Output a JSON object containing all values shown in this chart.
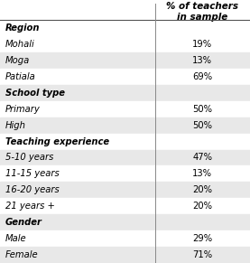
{
  "header": "% of teachers\nin sample",
  "rows": [
    {
      "label": "Region",
      "value": "",
      "is_header": true,
      "bg": "#ffffff"
    },
    {
      "label": "Mohali",
      "value": "19%",
      "is_header": false,
      "bg": "#ffffff"
    },
    {
      "label": "Moga",
      "value": "13%",
      "is_header": false,
      "bg": "#e8e8e8"
    },
    {
      "label": "Patiala",
      "value": "69%",
      "is_header": false,
      "bg": "#ffffff"
    },
    {
      "label": "School type",
      "value": "",
      "is_header": true,
      "bg": "#e8e8e8"
    },
    {
      "label": "Primary",
      "value": "50%",
      "is_header": false,
      "bg": "#ffffff"
    },
    {
      "label": "High",
      "value": "50%",
      "is_header": false,
      "bg": "#e8e8e8"
    },
    {
      "label": "Teaching experience",
      "value": "",
      "is_header": true,
      "bg": "#ffffff"
    },
    {
      "label": "5-10 years",
      "value": "47%",
      "is_header": false,
      "bg": "#e8e8e8"
    },
    {
      "label": "11-15 years",
      "value": "13%",
      "is_header": false,
      "bg": "#ffffff"
    },
    {
      "label": "16-20 years",
      "value": "20%",
      "is_header": false,
      "bg": "#e8e8e8"
    },
    {
      "label": "21 years +",
      "value": "20%",
      "is_header": false,
      "bg": "#ffffff"
    },
    {
      "label": "Gender",
      "value": "",
      "is_header": true,
      "bg": "#e8e8e8"
    },
    {
      "label": "Male",
      "value": "29%",
      "is_header": false,
      "bg": "#ffffff"
    },
    {
      "label": "Female",
      "value": "71%",
      "is_header": false,
      "bg": "#e8e8e8"
    }
  ],
  "col_split": 0.62,
  "figsize": [
    2.77,
    2.91
  ],
  "dpi": 100,
  "text_color": "#000000",
  "font_size": 7.2,
  "header_font_size": 7.5,
  "line_color": "#888888",
  "header_line_color": "#555555"
}
